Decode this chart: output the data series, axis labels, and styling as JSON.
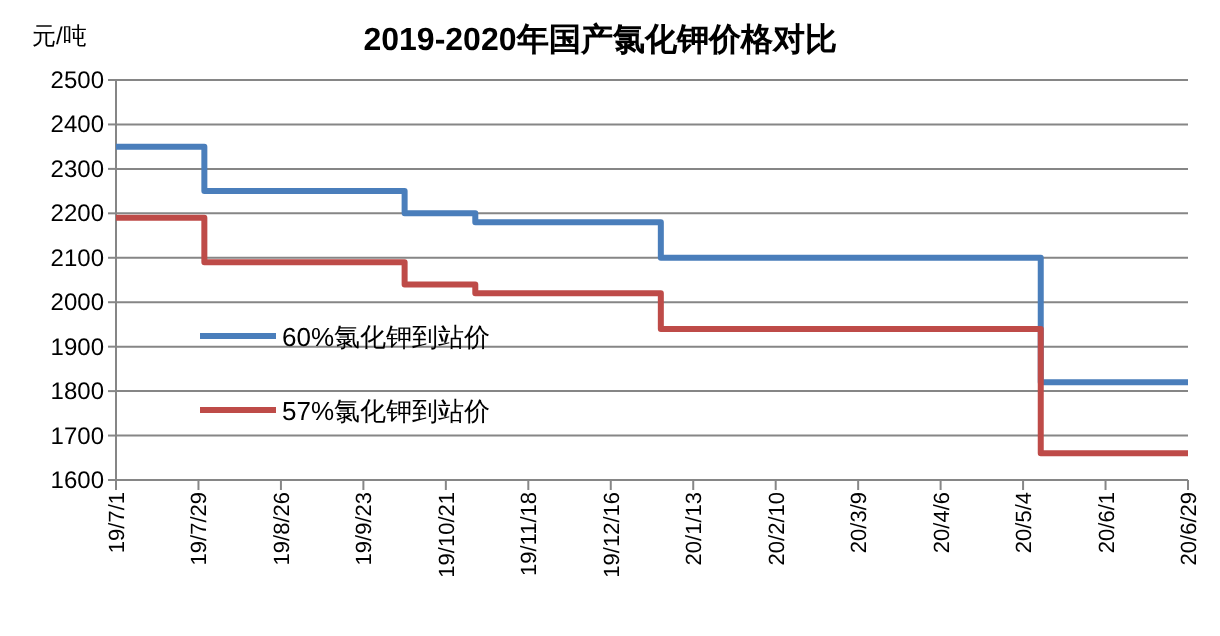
{
  "chart_data": {
    "type": "step",
    "title": "2019-2020年国产氯化钾价格对比",
    "ylabel": "元/吨",
    "series": [
      {
        "name": "60%氯化钾到站价",
        "color": "#4a7ebb",
        "x": [
          "2019-07-01",
          "2019-07-31",
          "2019-10-07",
          "2019-10-31",
          "2020-01-02",
          "2020-05-10",
          "2020-06-29"
        ],
        "values": [
          2350,
          2250,
          2200,
          2180,
          2100,
          1820,
          1820
        ]
      },
      {
        "name": "57%氯化钾到站价",
        "color": "#be4b48",
        "x": [
          "2019-07-01",
          "2019-07-31",
          "2019-10-07",
          "2019-10-31",
          "2020-01-02",
          "2020-05-10",
          "2020-06-29"
        ],
        "values": [
          2190,
          2090,
          2040,
          2020,
          1940,
          1660,
          1660
        ]
      }
    ],
    "xlim": [
      "2019-07-01",
      "2020-06-29"
    ],
    "xticks": [
      {
        "value": "2019-07-01",
        "label": "19/7/1"
      },
      {
        "value": "2019-07-29",
        "label": "19/7/29"
      },
      {
        "value": "2019-08-26",
        "label": "19/8/26"
      },
      {
        "value": "2019-09-23",
        "label": "19/9/23"
      },
      {
        "value": "2019-10-21",
        "label": "19/10/21"
      },
      {
        "value": "2019-11-18",
        "label": "19/11/18"
      },
      {
        "value": "2019-12-16",
        "label": "19/12/16"
      },
      {
        "value": "2020-01-13",
        "label": "20/1/13"
      },
      {
        "value": "2020-02-10",
        "label": "20/2/10"
      },
      {
        "value": "2020-03-09",
        "label": "20/3/9"
      },
      {
        "value": "2020-04-06",
        "label": "20/4/6"
      },
      {
        "value": "2020-05-04",
        "label": "20/5/4"
      },
      {
        "value": "2020-06-01",
        "label": "20/6/1"
      },
      {
        "value": "2020-06-29",
        "label": "20/6/29"
      }
    ],
    "ylim": [
      1600,
      2500
    ],
    "yticks": [
      1600,
      1700,
      1800,
      1900,
      2000,
      2100,
      2200,
      2300,
      2400,
      2500
    ],
    "grid": "y",
    "legend": "left",
    "line_style": "solid",
    "marker": "none"
  }
}
